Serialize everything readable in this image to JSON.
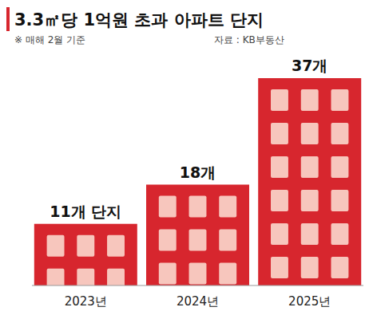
{
  "chart_data": {
    "type": "bar",
    "title": "3.3㎡당 1억원 초과 아파트 단지",
    "subtitle": "※ 매해 2월 기준",
    "source": "자료 : KB부동산",
    "categories": [
      "2023년",
      "2024년",
      "2025년"
    ],
    "values": [
      11,
      18,
      37
    ],
    "value_labels": [
      "11개 단지",
      "18개",
      "37개"
    ],
    "color": "#d7262e",
    "ylim": [
      0,
      37
    ],
    "data_labels": true,
    "tick_labels": "x",
    "grid": false
  }
}
